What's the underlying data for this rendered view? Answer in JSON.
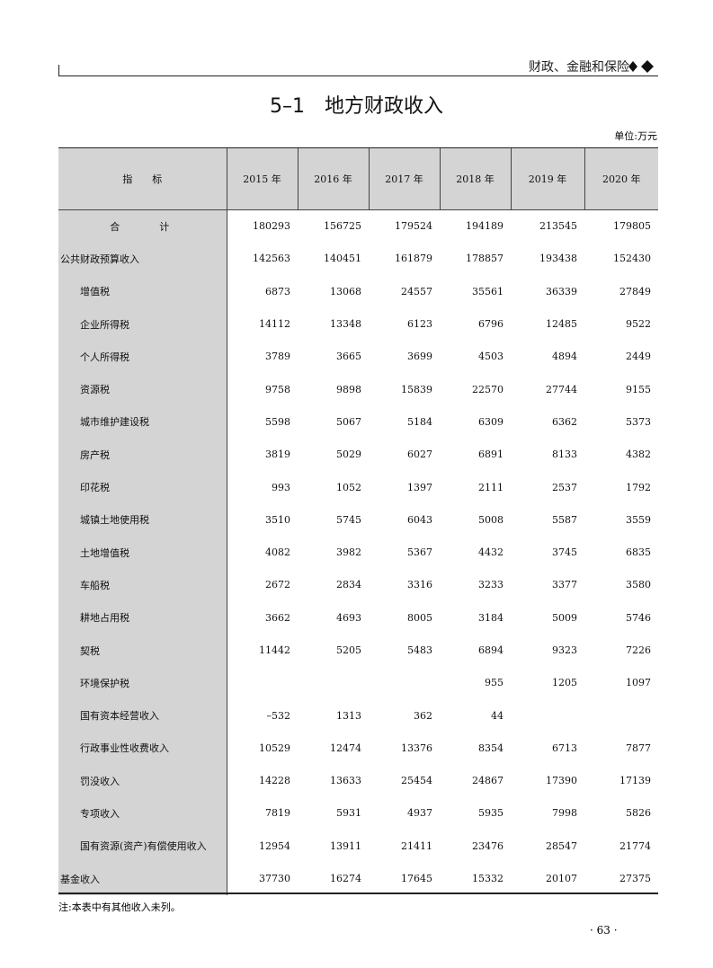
{
  "header": {
    "section": "财政、金融和保险"
  },
  "title": {
    "number": "5–1",
    "name": "地方财政收入"
  },
  "unit": "单位:万元",
  "table": {
    "columns": [
      "指　　标",
      "2015 年",
      "2016 年",
      "2017 年",
      "2018 年",
      "2019 年",
      "2020 年"
    ],
    "rows": [
      [
        "合　　　　计",
        "180293",
        "156725",
        "179524",
        "194189",
        "213545",
        "179805"
      ],
      [
        "公共财政预算收入",
        "142563",
        "140451",
        "161879",
        "178857",
        "193438",
        "152430"
      ],
      [
        "增值税",
        "6873",
        "13068",
        "24557",
        "35561",
        "36339",
        "27849"
      ],
      [
        "企业所得税",
        "14112",
        "13348",
        "6123",
        "6796",
        "12485",
        "9522"
      ],
      [
        "个人所得税",
        "3789",
        "3665",
        "3699",
        "4503",
        "4894",
        "2449"
      ],
      [
        "资源税",
        "9758",
        "9898",
        "15839",
        "22570",
        "27744",
        "9155"
      ],
      [
        "城市维护建设税",
        "5598",
        "5067",
        "5184",
        "6309",
        "6362",
        "5373"
      ],
      [
        "房产税",
        "3819",
        "5029",
        "6027",
        "6891",
        "8133",
        "4382"
      ],
      [
        "印花税",
        "993",
        "1052",
        "1397",
        "2111",
        "2537",
        "1792"
      ],
      [
        "城镇土地使用税",
        "3510",
        "5745",
        "6043",
        "5008",
        "5587",
        "3559"
      ],
      [
        "土地增值税",
        "4082",
        "3982",
        "5367",
        "4432",
        "3745",
        "6835"
      ],
      [
        "车船税",
        "2672",
        "2834",
        "3316",
        "3233",
        "3377",
        "3580"
      ],
      [
        "耕地占用税",
        "3662",
        "4693",
        "8005",
        "3184",
        "5009",
        "5746"
      ],
      [
        "契税",
        "11442",
        "5205",
        "5483",
        "6894",
        "9323",
        "7226"
      ],
      [
        "环境保护税",
        null,
        null,
        null,
        "955",
        "1205",
        "1097"
      ],
      [
        "国有资本经营收入",
        "–532",
        "1313",
        "362",
        "44",
        null,
        null
      ],
      [
        "行政事业性收费收入",
        "10529",
        "12474",
        "13376",
        "8354",
        "6713",
        "7877"
      ],
      [
        "罚没收入",
        "14228",
        "13633",
        "25454",
        "24867",
        "17390",
        "17139"
      ],
      [
        "专项收入",
        "7819",
        "5931",
        "4937",
        "5935",
        "7998",
        "5826"
      ],
      [
        "国有资源(资产)有偿使用收入",
        "12954",
        "13911",
        "21411",
        "23476",
        "28547",
        "21774"
      ],
      [
        "基金收入",
        "37730",
        "16274",
        "17645",
        "15332",
        "20107",
        "27375"
      ]
    ]
  },
  "note": "注:本表中有其他收入未列。",
  "page_number": "· 63 ·"
}
